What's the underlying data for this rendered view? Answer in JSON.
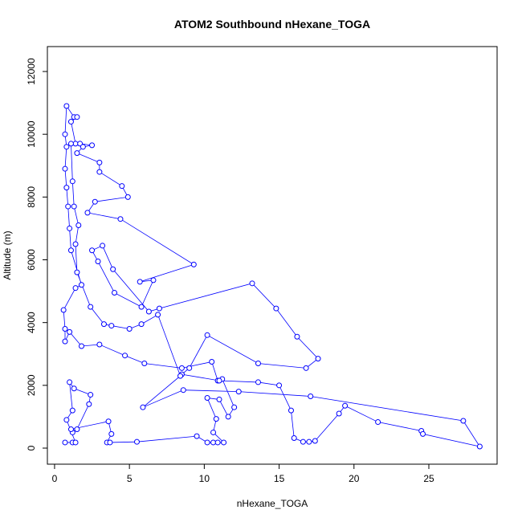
{
  "chart_data": {
    "type": "line",
    "title": "ATOM2 Southbound nHexane_TOGA",
    "x_label": "nHexane_TOGA",
    "y_label": "Altitude (m)",
    "xlim": [
      -0.48,
      29.56
    ],
    "ylim": [
      -512,
      12794
    ],
    "xticks": [
      0,
      5,
      10,
      15,
      20,
      25
    ],
    "yticks": [
      0,
      2000,
      4000,
      6000,
      8000,
      10000,
      12000
    ],
    "marker": "open-circle",
    "series": [
      {
        "color": "#0000ff",
        "x": [
          0.7,
          1.2,
          1.4,
          0.8,
          1.2,
          1.0,
          1.3,
          2.4,
          2.3,
          1.5,
          1.2,
          1.1,
          3.6,
          3.8,
          3.5,
          3.7,
          5.5,
          9.5,
          10.2,
          10.6,
          10.9,
          11.3,
          10.6,
          10.8,
          10.2,
          11.0,
          11.6,
          12.0,
          11.2,
          10.9,
          10.5,
          8.5,
          6.0,
          4.7,
          3.0,
          1.8,
          1.0,
          0.7,
          0.7,
          0.6,
          1.4,
          1.8,
          1.1,
          1.0,
          0.9,
          0.8,
          0.7,
          0.8,
          0.7,
          0.8,
          1.3,
          1.5,
          1.1,
          1.4,
          1.7,
          2.5,
          1.9,
          1.5,
          3.0,
          3.0,
          4.5,
          4.9,
          2.7,
          2.2,
          4.4,
          9.3,
          5.7,
          6.6,
          5.8,
          4.0,
          2.9,
          2.5,
          3.2,
          3.9,
          6.3,
          7.0,
          13.2,
          14.8,
          16.2,
          17.6,
          16.8,
          13.6,
          10.2,
          9.0,
          8.5,
          11.0,
          13.6,
          15.0,
          15.8,
          16.0,
          16.6,
          17.0,
          17.4,
          19.0,
          19.4,
          21.6,
          24.5,
          24.6,
          28.4,
          27.3,
          17.1,
          12.3,
          8.6,
          5.9,
          8.4,
          6.9,
          5.8,
          5.0,
          3.8,
          3.3,
          2.4,
          1.5,
          1.4,
          1.6,
          1.3,
          1.2,
          1.1
        ],
        "y": [
          180,
          180,
          180,
          900,
          1200,
          2100,
          1900,
          1700,
          1400,
          600,
          500,
          600,
          850,
          450,
          180,
          180,
          200,
          380,
          180,
          180,
          180,
          180,
          500,
          930,
          1600,
          1550,
          1000,
          1300,
          2200,
          2150,
          2750,
          2550,
          2700,
          2950,
          3300,
          3250,
          3700,
          3400,
          3800,
          4400,
          5100,
          5200,
          6300,
          7000,
          7700,
          8300,
          8900,
          9600,
          10000,
          10900,
          10550,
          10550,
          10400,
          9700,
          9700,
          9650,
          9600,
          9400,
          9100,
          8800,
          8350,
          8000,
          7850,
          7500,
          7300,
          5850,
          5300,
          5350,
          4500,
          4950,
          5950,
          6300,
          6450,
          5700,
          4350,
          4450,
          5250,
          4450,
          3550,
          2850,
          2550,
          2700,
          3600,
          2550,
          2350,
          2150,
          2100,
          2000,
          1200,
          320,
          200,
          200,
          230,
          1100,
          1350,
          830,
          550,
          450,
          50,
          870,
          1650,
          1800,
          1850,
          1300,
          2300,
          4250,
          3950,
          3800,
          3900,
          3950,
          4500,
          5600,
          6500,
          7100,
          7700,
          8500,
          9700
        ]
      }
    ]
  }
}
